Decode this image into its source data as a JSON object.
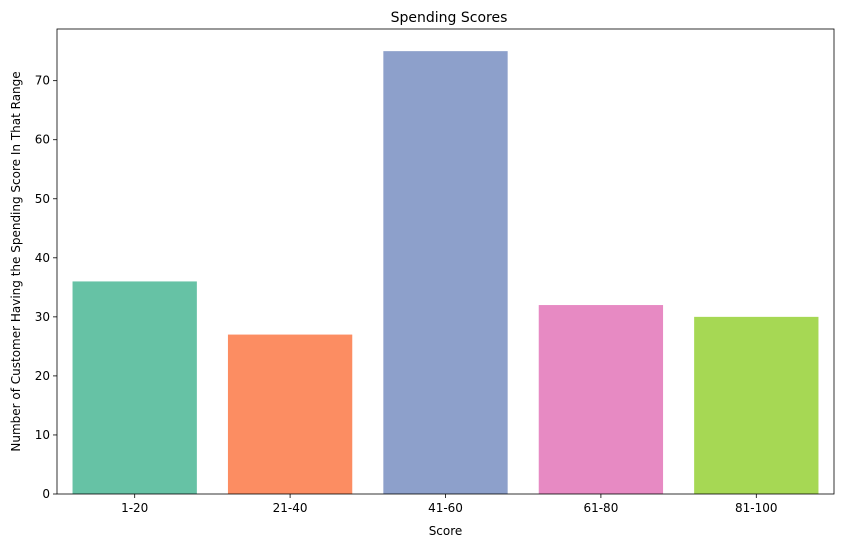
{
  "chart_data": {
    "type": "bar",
    "title": "Spending Scores",
    "xlabel": "Score",
    "ylabel": "Number of Customer Having the Spending Score In That Range",
    "categories": [
      "1-20",
      "21-40",
      "41-60",
      "61-80",
      "81-100"
    ],
    "values": [
      36,
      27,
      75,
      32,
      30
    ],
    "colors": [
      "#66c2a5",
      "#fc8d62",
      "#8da0cb",
      "#e78ac3",
      "#a6d854"
    ],
    "ylim": [
      0,
      78.75
    ],
    "yticks": [
      0,
      10,
      20,
      30,
      40,
      50,
      60,
      70
    ],
    "grid": false,
    "legend": "none"
  }
}
